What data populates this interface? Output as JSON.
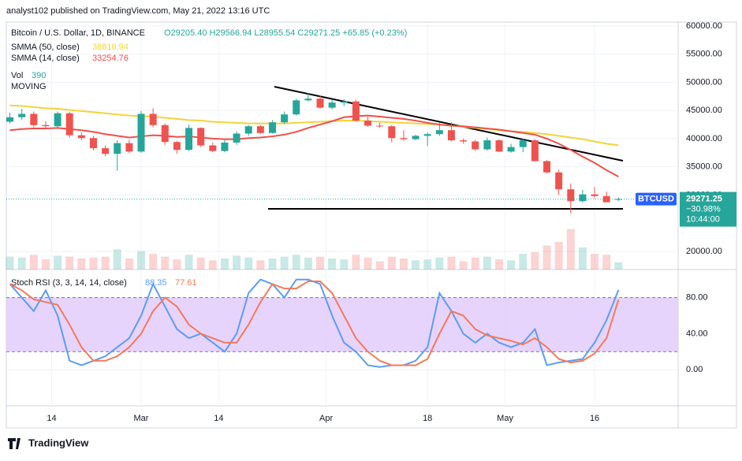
{
  "header": {
    "publisher": "analyst102 published on TradingView.com, May 21, 2022 13:16 UTC"
  },
  "footer": {
    "brand": "TradingView"
  },
  "chart_data": [
    {
      "type": "candlestick",
      "title": "Bitcoin / U.S. Dollar, 1D, BINANCE",
      "ohlc_text": "O29205.40  H29566.94  L28955.54  C29271.25  +65.85 (+0.23%)",
      "x": [
        6,
        8,
        10,
        12,
        14,
        16,
        18,
        20,
        22,
        24,
        26,
        28,
        30,
        32,
        34,
        36,
        38,
        40,
        42,
        44,
        46,
        48,
        50,
        52,
        54,
        56,
        58,
        60,
        62,
        64,
        66,
        68,
        70,
        72,
        74,
        76,
        78,
        80,
        82,
        84,
        86,
        88,
        90,
        92,
        94,
        96,
        98,
        100,
        102,
        104,
        106,
        108
      ],
      "xlim": [
        5.4,
        118
      ],
      "xticks": [
        {
          "value": 13,
          "label": "14"
        },
        {
          "value": 28,
          "label": "Mar"
        },
        {
          "value": 41,
          "label": "14"
        },
        {
          "value": 59,
          "label": "Apr"
        },
        {
          "value": 76,
          "label": "18"
        },
        {
          "value": 89,
          "label": "May"
        },
        {
          "value": 104,
          "label": "16"
        }
      ],
      "ylim": [
        16760,
        60700
      ],
      "yticks": [
        {
          "value": 60000,
          "label": "60000.00"
        },
        {
          "value": 55000,
          "label": "55000.00"
        },
        {
          "value": 50000,
          "label": "50000.00"
        },
        {
          "value": 45000,
          "label": "45000.00"
        },
        {
          "value": 40000,
          "label": "40000.00"
        },
        {
          "value": 35000,
          "label": "35000.00"
        },
        {
          "value": 30000,
          "label": "30000.00"
        },
        {
          "value": 20000,
          "label": "20000.00"
        }
      ],
      "up_color": "#26a69a",
      "down_color": "#ef5350",
      "ohlc": [
        [
          43000,
          44600,
          42700,
          43800
        ],
        [
          43800,
          45300,
          43300,
          44400
        ],
        [
          44400,
          44800,
          42000,
          42400
        ],
        [
          42400,
          43100,
          41800,
          42200
        ],
        [
          42200,
          44800,
          41900,
          44500
        ],
        [
          44500,
          44800,
          40200,
          40600
        ],
        [
          40600,
          41100,
          39700,
          40100
        ],
        [
          40100,
          40500,
          37900,
          38300
        ],
        [
          38300,
          38800,
          36900,
          37300
        ],
        [
          37300,
          39700,
          34300,
          39200
        ],
        [
          39200,
          39800,
          37400,
          37700
        ],
        [
          37700,
          44900,
          37500,
          44400
        ],
        [
          44400,
          45400,
          42000,
          42400
        ],
        [
          42400,
          42700,
          38900,
          39400
        ],
        [
          39400,
          39600,
          37300,
          38000
        ],
        [
          38000,
          42500,
          37800,
          41900
        ],
        [
          41900,
          42000,
          38500,
          38800
        ],
        [
          38800,
          39300,
          37600,
          37800
        ],
        [
          37800,
          39800,
          37600,
          39300
        ],
        [
          39300,
          41300,
          38900,
          40900
        ],
        [
          40900,
          42400,
          40500,
          42200
        ],
        [
          42200,
          42400,
          40800,
          41000
        ],
        [
          41000,
          43300,
          40900,
          42900
        ],
        [
          42900,
          44800,
          42600,
          44300
        ],
        [
          44300,
          47100,
          44100,
          46800
        ],
        [
          46800,
          48100,
          46600,
          47100
        ],
        [
          47100,
          47600,
          45300,
          45500
        ],
        [
          45500,
          47000,
          45200,
          46400
        ],
        [
          46400,
          47000,
          45800,
          46600
        ],
        [
          46600,
          46900,
          43000,
          43200
        ],
        [
          43200,
          43900,
          42100,
          42300
        ],
        [
          42300,
          42800,
          41900,
          42200
        ],
        [
          42200,
          42400,
          39300,
          40100
        ],
        [
          40100,
          41500,
          39600,
          39900
        ],
        [
          39900,
          40700,
          39700,
          40500
        ],
        [
          40500,
          41100,
          38700,
          40800
        ],
        [
          40800,
          42900,
          40500,
          41500
        ],
        [
          41500,
          42900,
          39500,
          39700
        ],
        [
          39700,
          40000,
          39100,
          39500
        ],
        [
          39500,
          39800,
          37800,
          38100
        ],
        [
          38100,
          40200,
          37900,
          39700
        ],
        [
          39700,
          39900,
          37600,
          37700
        ],
        [
          37700,
          39100,
          37500,
          38500
        ],
        [
          38500,
          40000,
          37600,
          39700
        ],
        [
          39700,
          39900,
          35900,
          36000
        ],
        [
          36000,
          36200,
          33800,
          34000
        ],
        [
          34000,
          34500,
          30000,
          31000
        ],
        [
          31000,
          32000,
          26700,
          28900
        ],
        [
          28900,
          30900,
          28600,
          30100
        ],
        [
          30100,
          31400,
          29400,
          29800
        ],
        [
          29800,
          30600,
          28700,
          28700
        ],
        [
          29205.4,
          29566.94,
          28955.54,
          29271.25
        ]
      ],
      "volume": {
        "name": "Vol",
        "label": "390",
        "lim": [
          0,
          3000
        ],
        "values": [
          700,
          650,
          800,
          550,
          750,
          700,
          600,
          650,
          700,
          1100,
          600,
          1000,
          850,
          700,
          550,
          800,
          650,
          500,
          600,
          750,
          650,
          500,
          600,
          700,
          800,
          650,
          700,
          600,
          550,
          800,
          650,
          450,
          700,
          600,
          500,
          550,
          650,
          700,
          450,
          650,
          700,
          550,
          500,
          850,
          950,
          1300,
          1500,
          2200,
          1200,
          850,
          800,
          390
        ]
      },
      "note": "MOVING",
      "series": [
        {
          "name": "SMMA (50, close)",
          "last": "38816.94",
          "color": "#f2d43b",
          "values": [
            45900,
            45800,
            45600,
            45400,
            45300,
            45100,
            44900,
            44700,
            44500,
            44300,
            44100,
            44000,
            43900,
            43700,
            43500,
            43300,
            43200,
            43000,
            42900,
            42800,
            42700,
            42700,
            42700,
            42700,
            42800,
            42900,
            43000,
            43100,
            43200,
            43200,
            43100,
            43000,
            42900,
            42800,
            42700,
            42600,
            42500,
            42300,
            42100,
            41900,
            41700,
            41500,
            41300,
            41200,
            41000,
            40800,
            40500,
            40200,
            39900,
            39500,
            39100,
            38816.94
          ]
        },
        {
          "name": "SMMA (14, close)",
          "last": "33254.76",
          "color": "#ef4f4a",
          "values": [
            41500,
            41700,
            41800,
            41800,
            41900,
            41700,
            41500,
            41200,
            40800,
            40500,
            40200,
            40400,
            40600,
            40500,
            40300,
            40400,
            40200,
            40000,
            39900,
            39900,
            40100,
            40200,
            40400,
            40700,
            41200,
            41900,
            42500,
            43100,
            43800,
            44000,
            44100,
            43900,
            43700,
            43500,
            43200,
            42800,
            42500,
            42300,
            42200,
            42000,
            41800,
            41600,
            41300,
            41000,
            40700,
            40000,
            39100,
            38000,
            36800,
            35700,
            34400,
            33254.76
          ]
        }
      ],
      "price_tag": {
        "symbol": "BTCUSD",
        "price": "29271.25",
        "change": "−30.98%",
        "countdown": "10:44:00",
        "color": "#2962ff"
      }
    },
    {
      "type": "line",
      "title": "Stoch RSI (3, 3, 14, 14, close)",
      "ylim": [
        -40,
        111.1
      ],
      "yticks": [
        {
          "value": 80,
          "label": "80.00"
        },
        {
          "value": 40,
          "label": "40.00"
        },
        {
          "value": 0,
          "label": "0.00"
        }
      ],
      "band": [
        20,
        80
      ],
      "band_color": "#e1c9fb",
      "series": [
        {
          "name": "K",
          "last": "88.35",
          "color": "#5b9cf6",
          "values": [
            95,
            80,
            65,
            88,
            60,
            10,
            5,
            10,
            15,
            25,
            35,
            60,
            95,
            70,
            45,
            35,
            40,
            30,
            20,
            40,
            85,
            100,
            95,
            80,
            100,
            100,
            95,
            60,
            30,
            20,
            5,
            3,
            5,
            5,
            10,
            25,
            85,
            65,
            40,
            30,
            40,
            30,
            25,
            30,
            45,
            5,
            8,
            10,
            12,
            30,
            55,
            88.35
          ]
        },
        {
          "name": "D",
          "last": "77.61",
          "color": "#f5795a",
          "values": [
            95,
            88,
            78,
            75,
            72,
            50,
            25,
            10,
            10,
            15,
            25,
            40,
            65,
            80,
            70,
            50,
            40,
            35,
            30,
            30,
            50,
            75,
            95,
            90,
            90,
            98,
            98,
            85,
            60,
            35,
            20,
            10,
            5,
            5,
            5,
            12,
            40,
            65,
            60,
            45,
            38,
            35,
            32,
            28,
            35,
            25,
            12,
            8,
            10,
            18,
            35,
            77.61
          ]
        }
      ]
    }
  ]
}
